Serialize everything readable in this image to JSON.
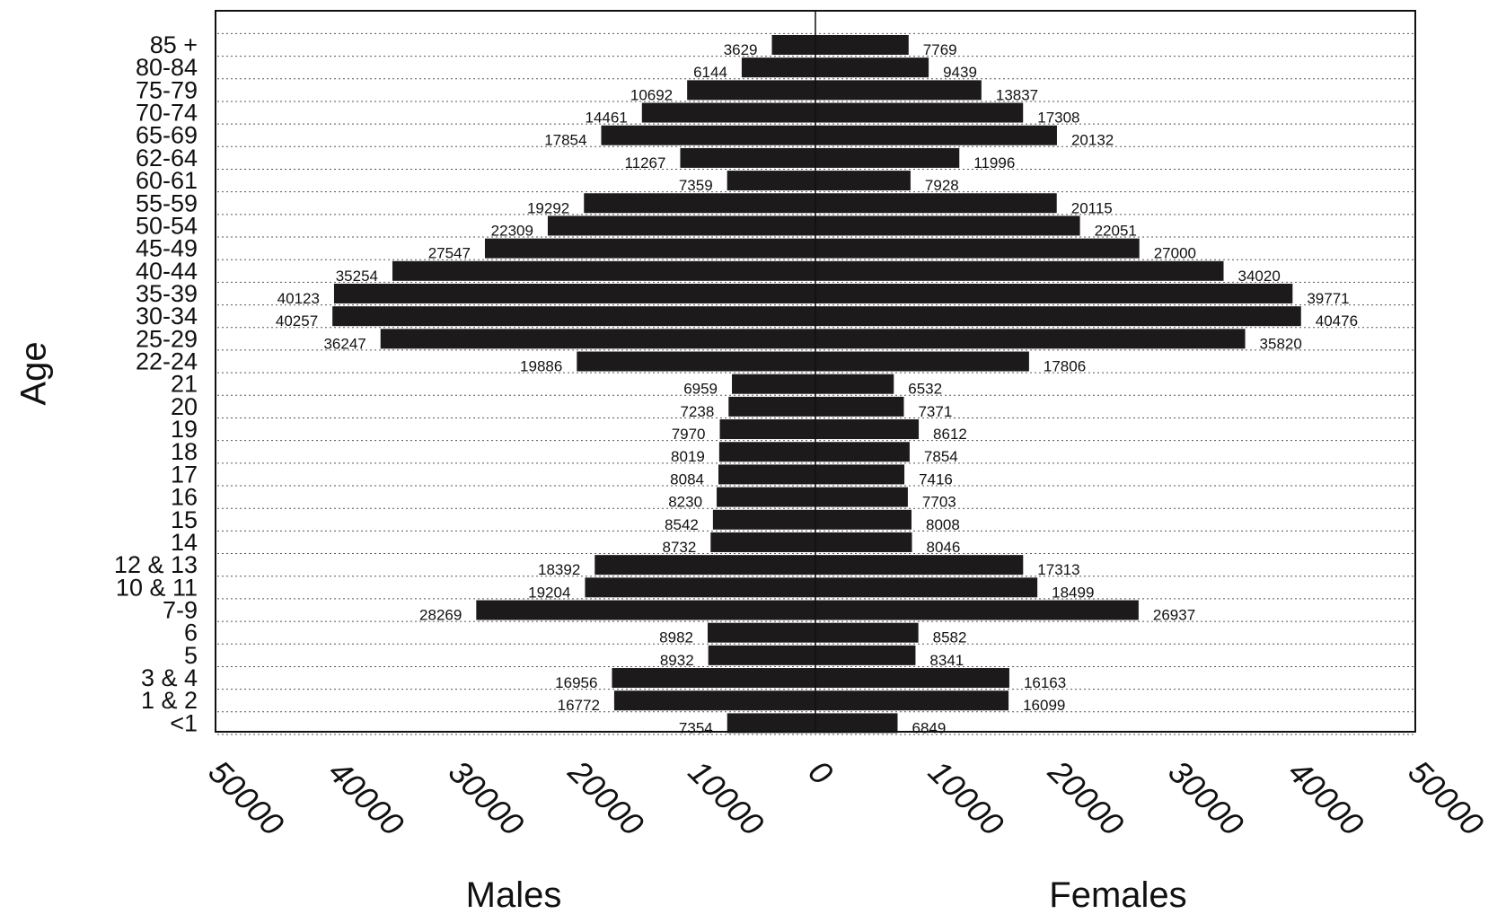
{
  "chart_data": {
    "type": "bar",
    "orientation": "horizontal",
    "layout": "population-pyramid",
    "ylabel": "Age",
    "grid": true,
    "categories": [
      "85 +",
      "80-84",
      "75-79",
      "70-74",
      "65-69",
      "62-64",
      "60-61",
      "55-59",
      "50-54",
      "45-49",
      "40-44",
      "35-39",
      "30-34",
      "25-29",
      "22-24",
      "21",
      "20",
      "19",
      "18",
      "17",
      "16",
      "15",
      "14",
      "12 & 13",
      "10 & 11",
      "7-9",
      "6",
      "5",
      "3 & 4",
      "1 & 2",
      "<1"
    ],
    "series": [
      {
        "name": "Males",
        "side": "left",
        "color": "#1c1a1a",
        "values": [
          3629,
          6144,
          10692,
          14461,
          17854,
          11267,
          7359,
          19292,
          22309,
          27547,
          35254,
          40123,
          40257,
          36247,
          19886,
          6959,
          7238,
          7970,
          8019,
          8084,
          8230,
          8542,
          8732,
          18392,
          19204,
          28269,
          8982,
          8932,
          16956,
          16772,
          7354
        ]
      },
      {
        "name": "Females",
        "side": "right",
        "color": "#1c1a1a",
        "values": [
          7769,
          9439,
          13837,
          17308,
          20132,
          11996,
          7928,
          20115,
          22051,
          27000,
          34020,
          39771,
          40476,
          35820,
          17806,
          6532,
          7371,
          8612,
          7854,
          7416,
          7703,
          8008,
          8046,
          17313,
          18499,
          26937,
          8582,
          8341,
          16163,
          16099,
          6849
        ]
      }
    ],
    "xlim": [
      -50000,
      50000
    ],
    "xticks": [
      {
        "value": -50000,
        "label": "50000"
      },
      {
        "value": -40000,
        "label": "40000"
      },
      {
        "value": -30000,
        "label": "30000"
      },
      {
        "value": -20000,
        "label": "20000"
      },
      {
        "value": -10000,
        "label": "10000"
      },
      {
        "value": 0,
        "label": "0"
      },
      {
        "value": 10000,
        "label": "10000"
      },
      {
        "value": 20000,
        "label": "20000"
      },
      {
        "value": 30000,
        "label": "30000"
      },
      {
        "value": 40000,
        "label": "40000"
      },
      {
        "value": 50000,
        "label": "50000"
      }
    ],
    "xlabel_left": "Males",
    "xlabel_right": "Females"
  }
}
